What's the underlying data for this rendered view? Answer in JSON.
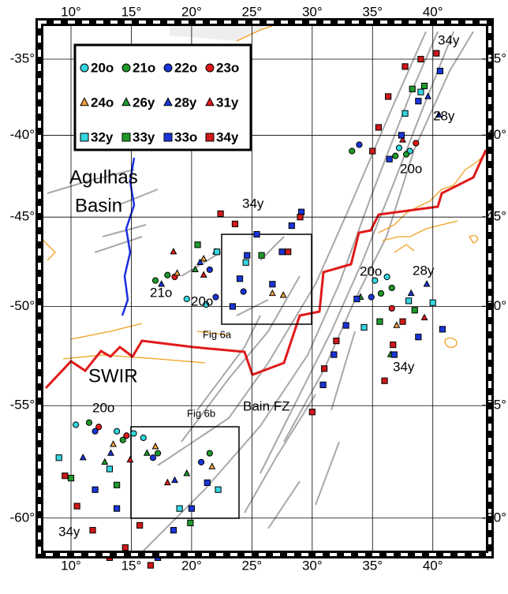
{
  "map": {
    "lon_ticks": [
      {
        "value": 10,
        "label": "10°"
      },
      {
        "value": 15,
        "label": "15°"
      },
      {
        "value": 20,
        "label": "20°"
      },
      {
        "value": 25,
        "label": "25°"
      },
      {
        "value": 30,
        "label": "30°"
      },
      {
        "value": 35,
        "label": "35°"
      },
      {
        "value": 40,
        "label": "40°"
      }
    ],
    "lat_ticks": [
      {
        "value": -35,
        "label": "-35°"
      },
      {
        "value": -40,
        "label": "-40°"
      },
      {
        "value": -45,
        "label": "-45°"
      },
      {
        "value": -50,
        "label": "-50°"
      },
      {
        "value": -55,
        "label": "-55°"
      },
      {
        "value": -60,
        "label": "-60°"
      }
    ],
    "grid": true,
    "annotations": [
      "Agulhas",
      "Basin",
      "SWIR",
      "Bain FZ",
      "Fig 6a",
      "Fig 6b",
      "34y",
      "28y",
      "20o",
      "34y",
      "21o",
      "20o",
      "20o",
      "28y",
      "34y",
      "20o",
      "34y"
    ],
    "anomalies": [
      {
        "name": "20o",
        "color": "#33d6e0",
        "symbol": "circle",
        "points": [
          [
            37.2,
            -40.8
          ],
          [
            38.1,
            -41.0
          ],
          [
            19.6,
            -49.6
          ],
          [
            21.2,
            -49.9
          ],
          [
            35.2,
            -48.6
          ],
          [
            36.2,
            -48.4
          ],
          [
            13.8,
            -56.2
          ],
          [
            15.2,
            -56.3
          ],
          [
            16.0,
            -56.5
          ],
          [
            10.4,
            -55.9
          ]
        ]
      },
      {
        "name": "21o",
        "color": "#1f9a2a",
        "symbol": "circle",
        "points": [
          [
            37.8,
            -41.2
          ],
          [
            36.9,
            -41.3
          ],
          [
            17.0,
            -48.6
          ],
          [
            18.0,
            -48.3
          ],
          [
            35.7,
            -49.3
          ],
          [
            36.6,
            -49.0
          ],
          [
            11.5,
            -55.8
          ],
          [
            14.3,
            -56.6
          ],
          [
            17.2,
            -57.2
          ],
          [
            21.5,
            -57.2
          ],
          [
            33.3,
            -41.0
          ]
        ]
      },
      {
        "name": "22o",
        "color": "#1a35d8",
        "symbol": "circle",
        "points": [
          [
            33.9,
            -40.6
          ],
          [
            22.0,
            -49.5
          ],
          [
            24.3,
            -49.2
          ],
          [
            34.9,
            -49.5
          ],
          [
            12.0,
            -56.2
          ],
          [
            16.8,
            -57.4
          ],
          [
            20.8,
            -57.6
          ],
          [
            21.5,
            -48.0
          ]
        ]
      },
      {
        "name": "23o",
        "color": "#e01a1a",
        "symbol": "circle",
        "points": [
          [
            38.6,
            -40.5
          ],
          [
            18.6,
            -48.4
          ],
          [
            36.6,
            -50.1
          ],
          [
            12.3,
            -56.0
          ],
          [
            14.6,
            -56.4
          ]
        ]
      },
      {
        "name": "24o",
        "color": "#f0a040",
        "symbol": "triangle",
        "points": [
          [
            26.7,
            -49.3
          ],
          [
            27.6,
            -49.4
          ],
          [
            18.8,
            -48.2
          ],
          [
            21.0,
            -47.4
          ],
          [
            37.0,
            -51.0
          ],
          [
            13.5,
            -56.8
          ],
          [
            17.0,
            -56.9
          ],
          [
            21.7,
            -57.8
          ]
        ]
      },
      {
        "name": "26y",
        "color": "#1f9a2a",
        "symbol": "triangle",
        "points": [
          [
            20.3,
            -48.0
          ],
          [
            22.0,
            -47.0
          ],
          [
            34.0,
            -49.5
          ],
          [
            36.5,
            -52.5
          ],
          [
            12.8,
            -57.6
          ],
          [
            16.3,
            -57.2
          ],
          [
            19.6,
            -58.1
          ]
        ]
      },
      {
        "name": "28y",
        "color": "#1a35d8",
        "symbol": "triangle",
        "points": [
          [
            40.5,
            -38.7
          ],
          [
            39.6,
            -37.5
          ],
          [
            17.5,
            -48.8
          ],
          [
            20.7,
            -47.6
          ],
          [
            38.2,
            -49.3
          ],
          [
            39.5,
            -48.8
          ],
          [
            11.0,
            -57.4
          ],
          [
            13.3,
            -57.2
          ],
          [
            18.6,
            -58.4
          ]
        ]
      },
      {
        "name": "31y",
        "color": "#e01a1a",
        "symbol": "triangle",
        "points": [
          [
            37.5,
            -40.3
          ],
          [
            18.5,
            -47.0
          ],
          [
            21.0,
            -48.3
          ],
          [
            39.3,
            -50.6
          ],
          [
            14.9,
            -57.5
          ],
          [
            18.0,
            -58.5
          ]
        ]
      },
      {
        "name": "32y",
        "color": "#33d6e0",
        "symbol": "square",
        "points": [
          [
            37.7,
            -38.6
          ],
          [
            39.0,
            -37.2
          ],
          [
            22.1,
            -47.0
          ],
          [
            24.5,
            -47.6
          ],
          [
            34.3,
            -51.1
          ],
          [
            38.0,
            -49.7
          ],
          [
            40.0,
            -49.8
          ],
          [
            9.0,
            -57.4
          ],
          [
            13.2,
            -57.9
          ],
          [
            19.0,
            -59.6
          ],
          [
            22.2,
            -58.8
          ]
        ]
      },
      {
        "name": "33y",
        "color": "#1f9a2a",
        "symbol": "square",
        "points": [
          [
            38.3,
            -37.0
          ],
          [
            39.3,
            -36.8
          ],
          [
            20.5,
            -46.6
          ],
          [
            25.8,
            -47.2
          ],
          [
            35.6,
            -50.8
          ],
          [
            38.5,
            -50.2
          ],
          [
            10.0,
            -58.3
          ],
          [
            13.8,
            -58.6
          ],
          [
            19.9,
            -60.2
          ]
        ]
      },
      {
        "name": "33o",
        "color": "#1a35d8",
        "symbol": "square",
        "points": [
          [
            36.4,
            -41.5
          ],
          [
            37.4,
            -40.0
          ],
          [
            38.8,
            -37.8
          ],
          [
            40.6,
            -35.8
          ],
          [
            23.4,
            -50.0
          ],
          [
            24.0,
            -48.5
          ],
          [
            24.6,
            -47.2
          ],
          [
            25.4,
            -46.0
          ],
          [
            26.7,
            -48.8
          ],
          [
            27.5,
            -47.0
          ],
          [
            28.3,
            -45.5
          ],
          [
            29.1,
            -44.7
          ],
          [
            30.9,
            -54.0
          ],
          [
            31.8,
            -52.5
          ],
          [
            32.8,
            -51.0
          ],
          [
            33.7,
            -49.6
          ],
          [
            36.8,
            -52.5
          ],
          [
            38.8,
            -51.6
          ],
          [
            40.8,
            -51.2
          ],
          [
            12.0,
            -58.8
          ],
          [
            13.8,
            -59.6
          ],
          [
            17.2,
            -61.6
          ],
          [
            18.5,
            -60.5
          ],
          [
            20.0,
            -59.6
          ],
          [
            21.3,
            -58.5
          ]
        ]
      },
      {
        "name": "34y",
        "color": "#d01818",
        "symbol": "square",
        "points": [
          [
            35.0,
            -41.0
          ],
          [
            35.5,
            -39.5
          ],
          [
            36.3,
            -37.5
          ],
          [
            37.7,
            -35.5
          ],
          [
            39.0,
            -35.0
          ],
          [
            40.3,
            -34.6
          ],
          [
            22.4,
            -44.8
          ],
          [
            23.6,
            -45.4
          ],
          [
            28.0,
            -47.0
          ],
          [
            29.0,
            -45.0
          ],
          [
            30.0,
            -55.3
          ],
          [
            31.0,
            -53.2
          ],
          [
            32.0,
            -51.8
          ],
          [
            36.0,
            -53.8
          ],
          [
            36.7,
            -52.0
          ],
          [
            37.5,
            -50.8
          ],
          [
            9.5,
            -58.2
          ],
          [
            10.5,
            -59.5
          ],
          [
            11.8,
            -60.5
          ],
          [
            13.2,
            -61.6
          ],
          [
            14.5,
            -61.2
          ],
          [
            15.7,
            -60.3
          ],
          [
            16.6,
            -61.9
          ]
        ]
      }
    ]
  }
}
